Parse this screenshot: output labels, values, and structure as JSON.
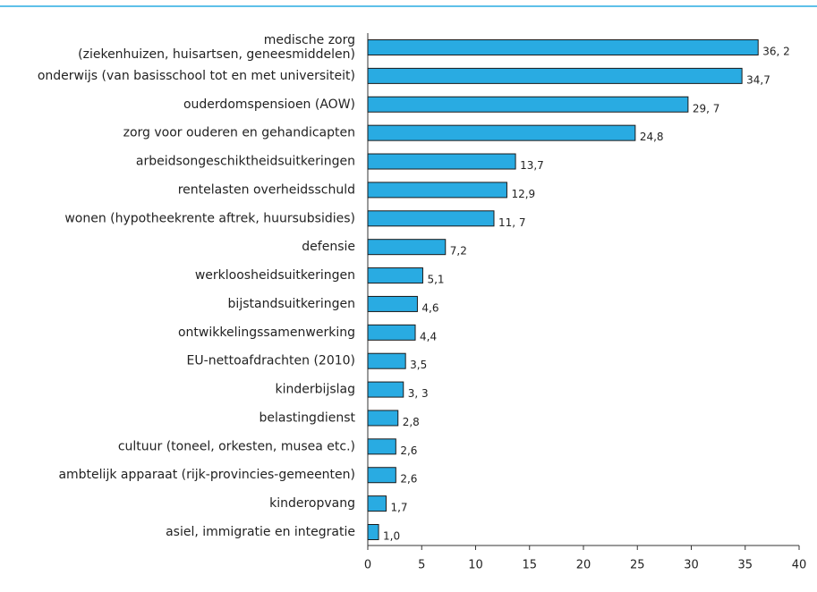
{
  "chart_data": {
    "type": "hbar",
    "categories": [
      "medische zorg\n(ziekenhuizen, huisartsen, geneesmiddelen)",
      "onderwijs (van basisschool tot en met universiteit)",
      "ouderdomspensioen (AOW)",
      "zorg voor ouderen en gehandicapten",
      "arbeidsongeschiktheidsuitkeringen",
      "rentelasten overheidsschuld",
      "wonen (hypotheekrente aftrek, huursubsidies)",
      "defensie",
      "werkloosheidsuitkeringen",
      "bijstandsuitkeringen",
      "ontwikkelingssamenwerking",
      "EU-nettoafdrachten (2010)",
      "kinderbijslag",
      "belastingdienst",
      "cultuur (toneel, orkesten, musea etc.)",
      "ambtelijk apparaat (rijk-provincies-gemeenten)",
      "kinderopvang",
      "asiel, immigratie en integratie"
    ],
    "values": [
      36.2,
      34.7,
      29.7,
      24.8,
      13.7,
      12.9,
      11.7,
      7.2,
      5.1,
      4.6,
      4.4,
      3.5,
      3.3,
      2.8,
      2.6,
      2.6,
      1.7,
      1.0
    ],
    "value_labels": [
      "36, 2",
      "34,7",
      "29, 7",
      "24,8",
      "13,7",
      "12,9",
      "11,  7",
      "7,2",
      "5,1",
      "4,6",
      "4,4",
      "3,5",
      "3, 3",
      "2,8",
      "2,6",
      "2,6",
      "1,7",
      "1,0"
    ],
    "color": "#29abe2",
    "xlim": [
      0,
      40
    ],
    "xticks": [
      0,
      5,
      10,
      15,
      20,
      25,
      30,
      35,
      40
    ]
  }
}
